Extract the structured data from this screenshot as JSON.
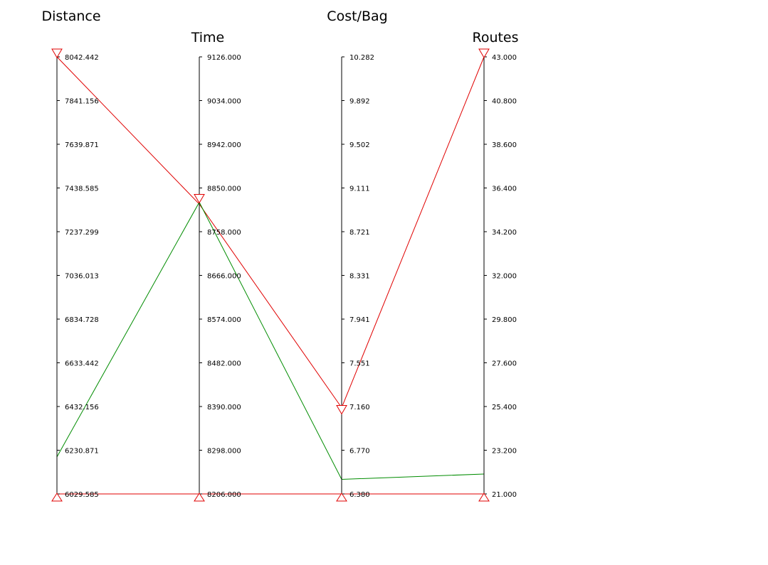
{
  "chart_data": {
    "type": "parallel-coordinates",
    "axes": [
      {
        "name": "Distance",
        "min": 6029.585,
        "max": 8042.442,
        "ticks": [
          "6029.585",
          "6230.871",
          "6432.156",
          "6633.442",
          "6834.728",
          "7036.013",
          "7237.299",
          "7438.585",
          "7639.871",
          "7841.156",
          "8042.442"
        ]
      },
      {
        "name": "Time",
        "min": 8206.0,
        "max": 9126.0,
        "ticks": [
          "8206.000",
          "8298.000",
          "8390.000",
          "8482.000",
          "8574.000",
          "8666.000",
          "8758.000",
          "8850.000",
          "8942.000",
          "9034.000",
          "9126.000"
        ]
      },
      {
        "name": "Cost/Bag",
        "min": 6.38,
        "max": 10.282,
        "ticks": [
          "6.380",
          "6.770",
          "7.160",
          "7.551",
          "7.941",
          "8.331",
          "8.721",
          "9.111",
          "9.502",
          "9.892",
          "10.282"
        ]
      },
      {
        "name": "Routes",
        "min": 21.0,
        "max": 43.0,
        "ticks": [
          "21.000",
          "23.200",
          "25.400",
          "27.600",
          "29.800",
          "32.000",
          "34.200",
          "36.400",
          "38.600",
          "40.800",
          "43.000"
        ]
      }
    ],
    "series": [
      {
        "color": "#e00000",
        "values": [
          8042.442,
          8816,
          7.15,
          43.0
        ]
      },
      {
        "color": "#e00000",
        "values": [
          6029.585,
          8206.0,
          6.38,
          21.0
        ]
      },
      {
        "color": "#008c00",
        "values": [
          6200,
          8820,
          6.51,
          22.0
        ]
      }
    ],
    "filters": {
      "color": "#e00000",
      "upper": [
        8042.442,
        8820,
        7.1,
        43.0
      ],
      "lower": [
        6029.585,
        8206.0,
        6.38,
        21.0
      ]
    }
  }
}
